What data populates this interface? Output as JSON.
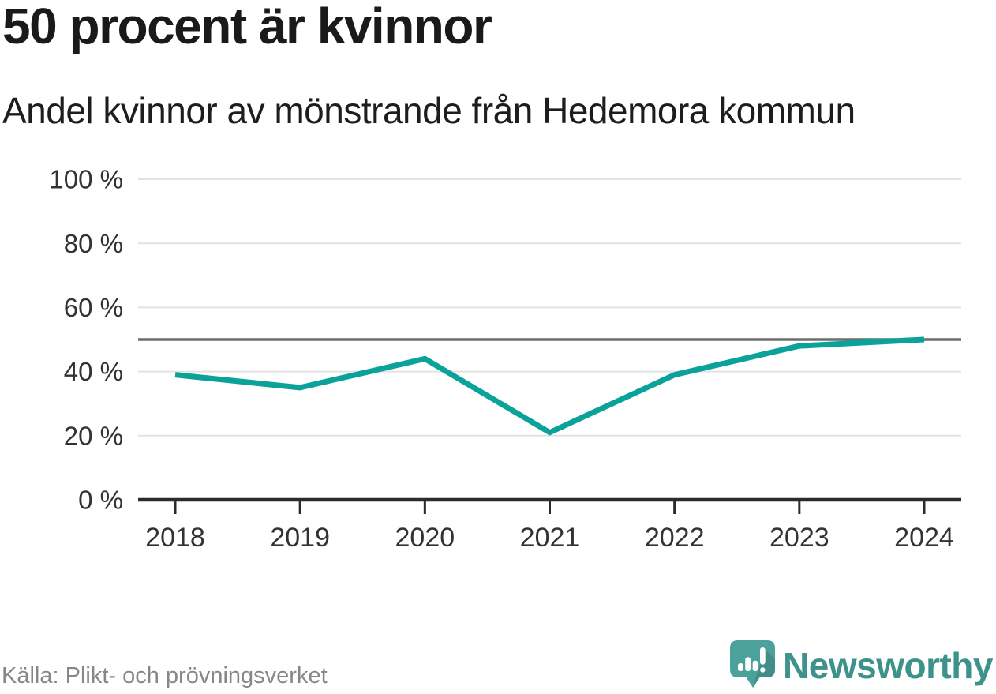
{
  "header": {
    "title": "50 procent är kvinnor",
    "subtitle": "Andel kvinnor av mönstrande från Hedemora kommun"
  },
  "footer": {
    "source_label": "Källa: Plikt- och prövningsverket",
    "brand_name": "Newsworthy"
  },
  "colors": {
    "series": "#0ba29a",
    "reference_line": "#6d6d6d",
    "gridline": "#e2e2e2",
    "axis": "#2b2b2b",
    "text": "#333333",
    "source_text": "#878787",
    "logo_teal": "#4ca29b",
    "logo_shadow": "rgba(0,0,0,0.13)",
    "wordmark_teal": "#3d928c"
  },
  "chart_data": {
    "type": "line",
    "title": "50 procent är kvinnor",
    "subtitle": "Andel kvinnor av mönstrande från Hedemora kommun",
    "x": [
      2018,
      2019,
      2020,
      2021,
      2022,
      2023,
      2024
    ],
    "x_tick_labels": [
      "2018",
      "2019",
      "2020",
      "2021",
      "2022",
      "2023",
      "2024"
    ],
    "series": [
      {
        "name": "Andel kvinnor av mönstrande, Hedemora kommun",
        "color": "#0ba29a",
        "values": [
          39,
          35,
          44,
          21,
          39,
          48,
          50
        ]
      }
    ],
    "unit": "%",
    "ylim": [
      0,
      100
    ],
    "y_ticks": [
      0,
      20,
      40,
      60,
      80,
      100
    ],
    "y_tick_labels": [
      "0 %",
      "20 %",
      "40 %",
      "60 %",
      "80 %",
      "100 %"
    ],
    "reference_line": {
      "value": 50
    },
    "grid": true,
    "legend": "none",
    "source": "Källa: Plikt- och prövningsverket"
  }
}
